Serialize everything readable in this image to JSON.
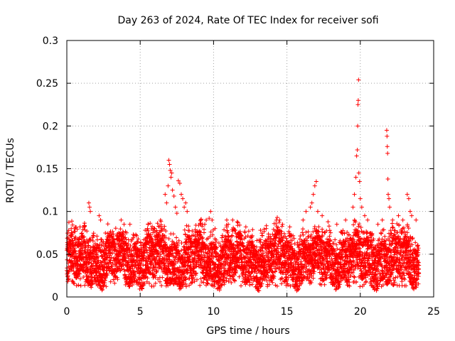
{
  "chart_data": {
    "type": "scatter",
    "title": "Day 263 of 2024, Rate Of TEC Index for receiver sofi",
    "xlabel": "GPS time / hours",
    "ylabel": "ROTI / TECUs",
    "xlim": [
      0,
      25
    ],
    "ylim": [
      0,
      0.3
    ],
    "xticks": [
      0,
      5,
      10,
      15,
      20,
      25
    ],
    "yticks": [
      0,
      0.05,
      0.1,
      0.15,
      0.2,
      0.25,
      0.3
    ],
    "xtick_labels": [
      "0",
      "5",
      "10",
      "15",
      "20",
      "25"
    ],
    "ytick_labels": [
      "0",
      "0.05",
      "0.1",
      "0.15",
      "0.2",
      "0.25",
      "0.3"
    ],
    "grid": true,
    "marker": "plus",
    "series": [
      {
        "name": "ROTI",
        "color": "#ff0000",
        "band": {
          "x_start": 0.0,
          "x_end": 24.0,
          "typical_min": 0.02,
          "typical_max": 0.065,
          "note": "dense cloud of points between roughly 0.015 and 0.08 TECU/s over the full day"
        },
        "points": [
          [
            0.3,
            0.08
          ],
          [
            0.4,
            0.075
          ],
          [
            1.5,
            0.11
          ],
          [
            1.55,
            0.105
          ],
          [
            1.6,
            0.1
          ],
          [
            2.2,
            0.095
          ],
          [
            2.3,
            0.09
          ],
          [
            2.35,
            0.01
          ],
          [
            2.4,
            0.008
          ],
          [
            3.7,
            0.09
          ],
          [
            3.9,
            0.085
          ],
          [
            4.3,
            0.085
          ],
          [
            5.5,
            0.08
          ],
          [
            6.7,
            0.12
          ],
          [
            6.8,
            0.11
          ],
          [
            6.9,
            0.13
          ],
          [
            6.95,
            0.16
          ],
          [
            7.0,
            0.155
          ],
          [
            7.05,
            0.148
          ],
          [
            7.1,
            0.14
          ],
          [
            7.15,
            0.145
          ],
          [
            7.2,
            0.125
          ],
          [
            7.3,
            0.118
          ],
          [
            7.4,
            0.105
          ],
          [
            7.5,
            0.098
          ],
          [
            7.6,
            0.136
          ],
          [
            7.7,
            0.133
          ],
          [
            7.8,
            0.12
          ],
          [
            7.9,
            0.115
          ],
          [
            8.0,
            0.105
          ],
          [
            8.1,
            0.11
          ],
          [
            8.2,
            0.1
          ],
          [
            9.4,
            0.085
          ],
          [
            9.5,
            0.09
          ],
          [
            9.7,
            0.092
          ],
          [
            9.8,
            0.1
          ],
          [
            9.9,
            0.09
          ],
          [
            10.1,
            0.08
          ],
          [
            10.9,
            0.09
          ],
          [
            11.0,
            0.085
          ],
          [
            11.3,
            0.09
          ],
          [
            12.2,
            0.082
          ],
          [
            13.2,
            0.078
          ],
          [
            14.5,
            0.09
          ],
          [
            14.7,
            0.085
          ],
          [
            16.1,
            0.09
          ],
          [
            16.3,
            0.1
          ],
          [
            16.6,
            0.105
          ],
          [
            16.7,
            0.11
          ],
          [
            16.8,
            0.12
          ],
          [
            16.9,
            0.13
          ],
          [
            17.0,
            0.135
          ],
          [
            17.1,
            0.1
          ],
          [
            17.4,
            0.095
          ],
          [
            17.8,
            0.088
          ],
          [
            18.4,
            0.085
          ],
          [
            19.0,
            0.09
          ],
          [
            19.5,
            0.105
          ],
          [
            19.6,
            0.12
          ],
          [
            19.7,
            0.14
          ],
          [
            19.75,
            0.165
          ],
          [
            19.8,
            0.172
          ],
          [
            19.82,
            0.2
          ],
          [
            19.84,
            0.225
          ],
          [
            19.86,
            0.23
          ],
          [
            19.88,
            0.254
          ],
          [
            19.9,
            0.145
          ],
          [
            19.95,
            0.135
          ],
          [
            20.0,
            0.115
          ],
          [
            20.1,
            0.105
          ],
          [
            20.3,
            0.095
          ],
          [
            20.5,
            0.09
          ],
          [
            21.2,
            0.085
          ],
          [
            21.5,
            0.09
          ],
          [
            21.8,
            0.195
          ],
          [
            21.82,
            0.188
          ],
          [
            21.84,
            0.176
          ],
          [
            21.86,
            0.168
          ],
          [
            21.88,
            0.138
          ],
          [
            21.9,
            0.12
          ],
          [
            21.95,
            0.115
          ],
          [
            22.0,
            0.105
          ],
          [
            22.2,
            0.09
          ],
          [
            22.6,
            0.095
          ],
          [
            22.9,
            0.09
          ],
          [
            23.2,
            0.12
          ],
          [
            23.3,
            0.115
          ],
          [
            23.4,
            0.1
          ],
          [
            23.5,
            0.095
          ],
          [
            23.8,
            0.09
          ]
        ]
      }
    ]
  }
}
